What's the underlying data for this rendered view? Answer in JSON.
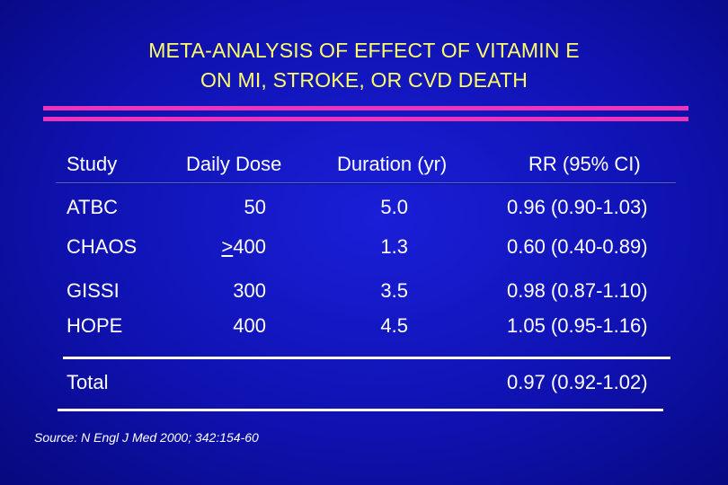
{
  "title": {
    "line1": "META-ANALYSIS OF EFFECT OF VITAMIN E",
    "line2": "ON MI, STROKE, OR CVD DEATH"
  },
  "table": {
    "headers": {
      "study": "Study",
      "dose": "Daily Dose",
      "duration": "Duration (yr)",
      "rr": "RR (95% CI)"
    },
    "rows": [
      {
        "study": "ATBC",
        "dose_prefix": "",
        "dose": "50",
        "duration": "5.0",
        "rr": "0.96 (0.90-1.03)"
      },
      {
        "study": "CHAOS",
        "dose_prefix": ">",
        "dose": "400",
        "duration": "1.3",
        "rr": "0.60 (0.40-0.89)"
      },
      {
        "study": "GISSI",
        "dose_prefix": "",
        "dose": "300",
        "duration": "3.5",
        "rr": "0.98 (0.87-1.10)"
      },
      {
        "study": "HOPE",
        "dose_prefix": "",
        "dose": "400",
        "duration": "4.5",
        "rr": "1.05 (0.95-1.16)"
      }
    ],
    "total": {
      "label": "Total",
      "rr": "0.97 (0.92-1.02)"
    }
  },
  "source": "Source: N Engl J Med 2000; 342:154-60",
  "colors": {
    "title": "#ffff66",
    "accent_bars": "#ee33bb",
    "text": "#ffffff",
    "background": "#1a1fd8"
  }
}
